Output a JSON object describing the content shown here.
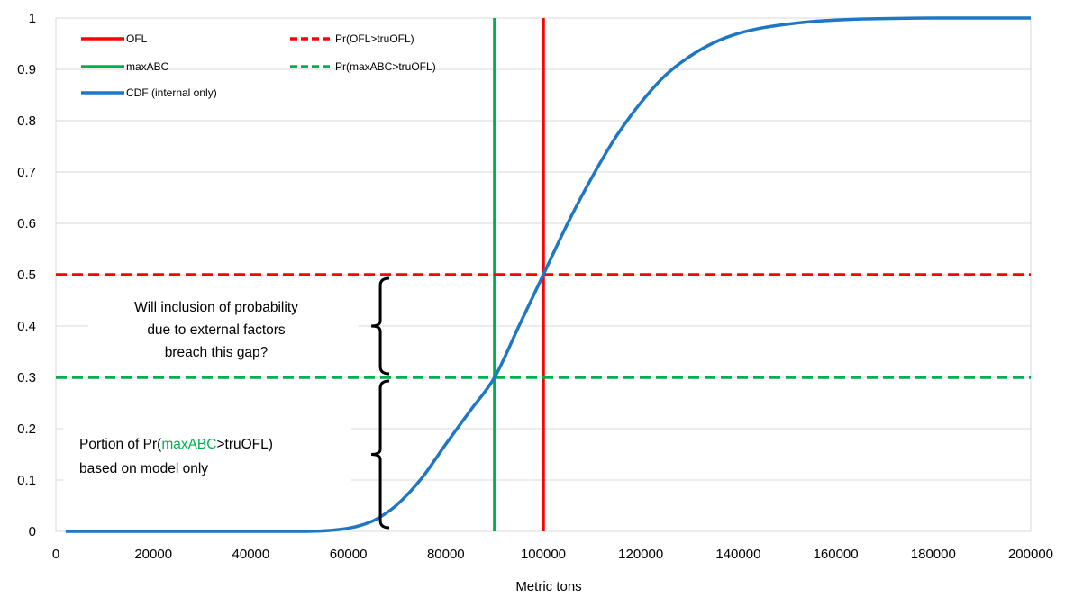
{
  "chart_data": {
    "type": "line",
    "title": "",
    "xlabel": "Metric tons",
    "ylabel": "",
    "xlim": [
      0,
      200000
    ],
    "ylim": [
      0,
      1
    ],
    "x_ticks": [
      "0",
      "20000",
      "40000",
      "60000",
      "80000",
      "100000",
      "120000",
      "140000",
      "160000",
      "180000",
      "200000"
    ],
    "y_ticks": [
      "0",
      "0.1",
      "0.2",
      "0.3",
      "0.4",
      "0.5",
      "0.6",
      "0.7",
      "0.8",
      "0.9",
      "1"
    ],
    "grid": "horizontal",
    "legend_position": "top-left",
    "series": [
      {
        "name": "CDF (internal only)",
        "color": "#1f77c4",
        "style": "solid",
        "x": [
          2000,
          40000,
          50000,
          55000,
          60000,
          63000,
          66000,
          70000,
          75000,
          80000,
          85000,
          90000,
          95000,
          100000,
          105000,
          110000,
          115000,
          120000,
          125000,
          130000,
          135000,
          140000,
          145000,
          150000,
          155000,
          160000,
          165000,
          170000,
          180000,
          190000,
          200000
        ],
        "y": [
          0,
          0,
          0,
          0.001,
          0.006,
          0.013,
          0.025,
          0.052,
          0.103,
          0.17,
          0.235,
          0.3,
          0.4,
          0.5,
          0.6,
          0.69,
          0.77,
          0.835,
          0.888,
          0.925,
          0.952,
          0.97,
          0.981,
          0.988,
          0.993,
          0.996,
          0.998,
          0.999,
          1,
          1,
          1
        ]
      },
      {
        "name": "OFL",
        "color": "#ff0000",
        "style": "solid",
        "orientation": "vertical",
        "x": 100000
      },
      {
        "name": "maxABC",
        "color": "#00b050",
        "style": "solid",
        "orientation": "vertical",
        "x": 90000
      },
      {
        "name": "Pr(OFL>truOFL)",
        "color": "#ff0000",
        "style": "dashed",
        "orientation": "horizontal",
        "y": 0.5
      },
      {
        "name": "Pr(maxABC>truOFL)",
        "color": "#00b050",
        "style": "dashed",
        "orientation": "horizontal",
        "y": 0.3
      }
    ],
    "legend": [
      {
        "label": "OFL",
        "color": "#ff0000",
        "style": "solid"
      },
      {
        "label": "Pr(OFL>truOFL)",
        "color": "#ff0000",
        "style": "dashed"
      },
      {
        "label": "maxABC",
        "color": "#00b050",
        "style": "solid"
      },
      {
        "label": "Pr(maxABC>truOFL)",
        "color": "#00b050",
        "style": "dashed"
      },
      {
        "label": "CDF (internal only)",
        "color": "#1f77c4",
        "style": "solid"
      }
    ],
    "annotations": [
      {
        "name": "gap-question",
        "lines": [
          "Will inclusion of probability",
          "due to external factors",
          "breach this gap?"
        ],
        "brace_y_range": [
          0.3,
          0.5
        ],
        "brace_x": 66000
      },
      {
        "name": "model-portion",
        "lines": [
          [
            {
              "text": "Portion of Pr(",
              "color": "#000000"
            },
            {
              "text": "maxABC",
              "color": "#00b050"
            },
            {
              "text": ">truOFL)",
              "color": "#000000"
            }
          ],
          [
            {
              "text": "based on model only",
              "color": "#000000"
            }
          ]
        ],
        "brace_y_range": [
          0,
          0.3
        ],
        "brace_x": 66000
      }
    ]
  }
}
